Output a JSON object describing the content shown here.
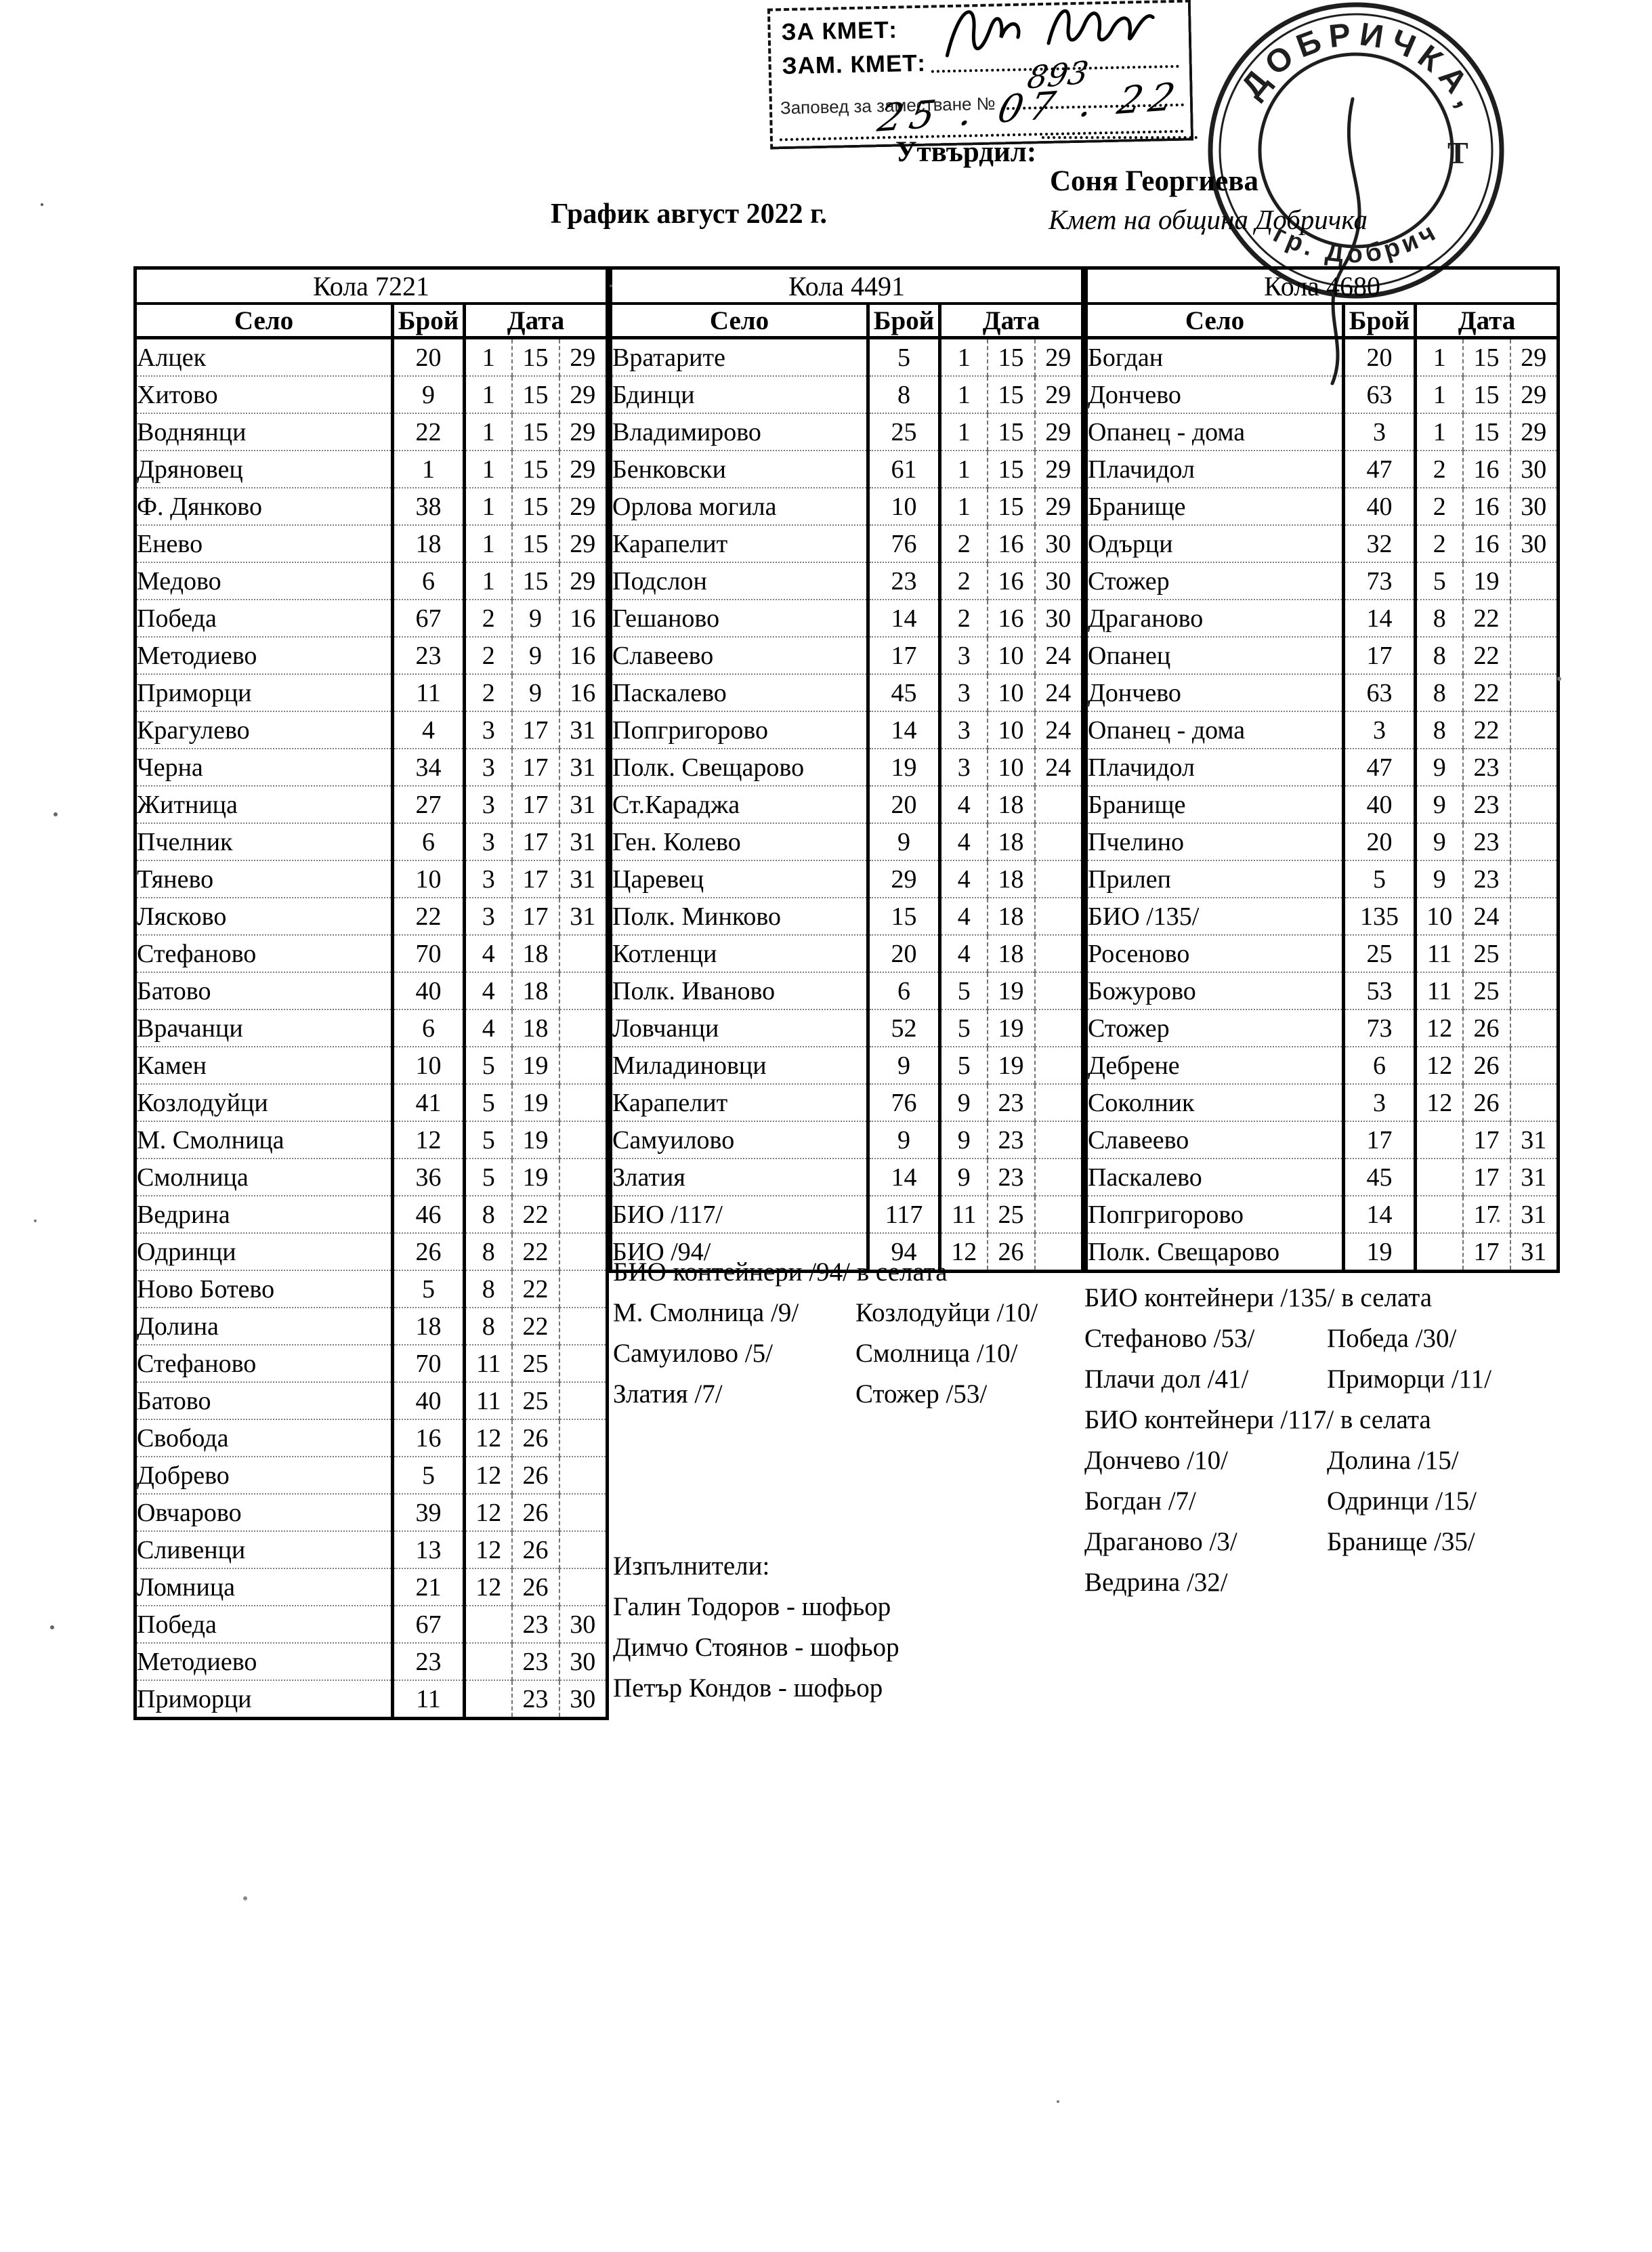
{
  "header": {
    "stamp_box": {
      "za_kmet": "ЗА КМЕТ:",
      "zam_kmet": "ЗАМ. КМЕТ:",
      "order_label": "Заповед за заместване №",
      "order_number": "893",
      "order_date": "25 . 07 . 22"
    },
    "approved_label": "Утвърдил:",
    "signer_name": "Соня Георгиева",
    "signer_title": "Кмет  на община Добричка",
    "round_stamp_top": "ДОБРИЧКА",
    "round_stamp_bottom": "гр. Добрич",
    "title": "График август 2022 г."
  },
  "table_headers": {
    "selo": "Село",
    "broy": "Брой",
    "data": "Дата"
  },
  "tables": [
    {
      "car": "Кола 7221",
      "rows": [
        [
          "Алцек",
          "20",
          "1",
          "15",
          "29"
        ],
        [
          "Хитово",
          "9",
          "1",
          "15",
          "29"
        ],
        [
          "Воднянци",
          "22",
          "1",
          "15",
          "29"
        ],
        [
          "Дряновец",
          "1",
          "1",
          "15",
          "29"
        ],
        [
          "Ф. Дянково",
          "38",
          "1",
          "15",
          "29"
        ],
        [
          "Енево",
          "18",
          "1",
          "15",
          "29"
        ],
        [
          "Медово",
          "6",
          "1",
          "15",
          "29"
        ],
        [
          "Победа",
          "67",
          "2",
          "9",
          "16"
        ],
        [
          "Методиево",
          "23",
          "2",
          "9",
          "16"
        ],
        [
          "Приморци",
          "11",
          "2",
          "9",
          "16"
        ],
        [
          "Крагулево",
          "4",
          "3",
          "17",
          "31"
        ],
        [
          "Черна",
          "34",
          "3",
          "17",
          "31"
        ],
        [
          "Житница",
          "27",
          "3",
          "17",
          "31"
        ],
        [
          "Пчелник",
          "6",
          "3",
          "17",
          "31"
        ],
        [
          "Тянево",
          "10",
          "3",
          "17",
          "31"
        ],
        [
          "Лясково",
          "22",
          "3",
          "17",
          "31"
        ],
        [
          "Стефаново",
          "70",
          "4",
          "18",
          ""
        ],
        [
          "Батово",
          "40",
          "4",
          "18",
          ""
        ],
        [
          "Врачанци",
          "6",
          "4",
          "18",
          ""
        ],
        [
          "Камен",
          "10",
          "5",
          "19",
          ""
        ],
        [
          "Козлодуйци",
          "41",
          "5",
          "19",
          ""
        ],
        [
          "М. Смолница",
          "12",
          "5",
          "19",
          ""
        ],
        [
          "Смолница",
          "36",
          "5",
          "19",
          ""
        ],
        [
          "Ведрина",
          "46",
          "8",
          "22",
          ""
        ],
        [
          "Одринци",
          "26",
          "8",
          "22",
          ""
        ],
        [
          "Ново Ботево",
          "5",
          "8",
          "22",
          ""
        ],
        [
          "Долина",
          "18",
          "8",
          "22",
          ""
        ],
        [
          "Стефаново",
          "70",
          "11",
          "25",
          ""
        ],
        [
          "Батово",
          "40",
          "11",
          "25",
          ""
        ],
        [
          "Свобода",
          "16",
          "12",
          "26",
          ""
        ],
        [
          "Добрево",
          "5",
          "12",
          "26",
          ""
        ],
        [
          "Овчарово",
          "39",
          "12",
          "26",
          ""
        ],
        [
          "Сливенци",
          "13",
          "12",
          "26",
          ""
        ],
        [
          "Ломница",
          "21",
          "12",
          "26",
          ""
        ],
        [
          "Победа",
          "67",
          "",
          "23",
          "30"
        ],
        [
          "Методиево",
          "23",
          "",
          "23",
          "30"
        ],
        [
          "Приморци",
          "11",
          "",
          "23",
          "30"
        ]
      ]
    },
    {
      "car": "Кола 4491",
      "rows": [
        [
          "Вратарите",
          "5",
          "1",
          "15",
          "29"
        ],
        [
          "Бдинци",
          "8",
          "1",
          "15",
          "29"
        ],
        [
          "Владимирово",
          "25",
          "1",
          "15",
          "29"
        ],
        [
          "Бенковски",
          "61",
          "1",
          "15",
          "29"
        ],
        [
          "Орлова могила",
          "10",
          "1",
          "15",
          "29"
        ],
        [
          "Карапелит",
          "76",
          "2",
          "16",
          "30"
        ],
        [
          "Подслон",
          "23",
          "2",
          "16",
          "30"
        ],
        [
          "Гешаново",
          "14",
          "2",
          "16",
          "30"
        ],
        [
          "Славеево",
          "17",
          "3",
          "10",
          "24"
        ],
        [
          "Паскалево",
          "45",
          "3",
          "10",
          "24"
        ],
        [
          "Попгригорово",
          "14",
          "3",
          "10",
          "24"
        ],
        [
          "Полк. Свещарово",
          "19",
          "3",
          "10",
          "24"
        ],
        [
          "Ст.Караджа",
          "20",
          "4",
          "18",
          ""
        ],
        [
          "Ген. Колево",
          "9",
          "4",
          "18",
          ""
        ],
        [
          "Царевец",
          "29",
          "4",
          "18",
          ""
        ],
        [
          "Полк. Минково",
          "15",
          "4",
          "18",
          ""
        ],
        [
          "Котленци",
          "20",
          "4",
          "18",
          ""
        ],
        [
          "Полк. Иваново",
          "6",
          "5",
          "19",
          ""
        ],
        [
          "Ловчанци",
          "52",
          "5",
          "19",
          ""
        ],
        [
          "Миладиновци",
          "9",
          "5",
          "19",
          ""
        ],
        [
          "Карапелит",
          "76",
          "9",
          "23",
          ""
        ],
        [
          "Самуилово",
          "9",
          "9",
          "23",
          ""
        ],
        [
          "Златия",
          "14",
          "9",
          "23",
          ""
        ],
        [
          "БИО /117/",
          "117",
          "11",
          "25",
          ""
        ],
        [
          "БИО /94/",
          "94",
          "12",
          "26",
          ""
        ]
      ]
    },
    {
      "car": "Кола 4680",
      "rows": [
        [
          "Богдан",
          "20",
          "1",
          "15",
          "29"
        ],
        [
          "Дончево",
          "63",
          "1",
          "15",
          "29"
        ],
        [
          "Опанец - дома",
          "3",
          "1",
          "15",
          "29"
        ],
        [
          "Плачидол",
          "47",
          "2",
          "16",
          "30"
        ],
        [
          "Бранище",
          "40",
          "2",
          "16",
          "30"
        ],
        [
          "Одърци",
          "32",
          "2",
          "16",
          "30"
        ],
        [
          "Стожер",
          "73",
          "5",
          "19",
          ""
        ],
        [
          "Драганово",
          "14",
          "8",
          "22",
          ""
        ],
        [
          "Опанец",
          "17",
          "8",
          "22",
          ""
        ],
        [
          "Дончево",
          "63",
          "8",
          "22",
          ""
        ],
        [
          "Опанец - дома",
          "3",
          "8",
          "22",
          ""
        ],
        [
          "Плачидол",
          "47",
          "9",
          "23",
          ""
        ],
        [
          "Бранище",
          "40",
          "9",
          "23",
          ""
        ],
        [
          "Пчелино",
          "20",
          "9",
          "23",
          ""
        ],
        [
          "Прилеп",
          "5",
          "9",
          "23",
          ""
        ],
        [
          "БИО /135/",
          "135",
          "10",
          "24",
          ""
        ],
        [
          "Росеново",
          "25",
          "11",
          "25",
          ""
        ],
        [
          "Божурово",
          "53",
          "11",
          "25",
          ""
        ],
        [
          "Стожер",
          "73",
          "12",
          "26",
          ""
        ],
        [
          "Дебрене",
          "6",
          "12",
          "26",
          ""
        ],
        [
          "Соколник",
          "3",
          "12",
          "26",
          ""
        ],
        [
          "Славеево",
          "17",
          "",
          "17",
          "31"
        ],
        [
          "Паскалево",
          "45",
          "",
          "17",
          "31"
        ],
        [
          "Попгригорово",
          "14",
          "",
          "17",
          "31"
        ],
        [
          "Полк. Свещарово",
          "19",
          "",
          "17",
          "31"
        ]
      ]
    }
  ],
  "notes_4491": {
    "bio_line": "БИО контейнери /94/ в селата",
    "pairs": [
      [
        "М. Смолница /9/",
        "Козлодуйци /10/"
      ],
      [
        "Самуилово /5/",
        "Смолница /10/"
      ],
      [
        "Златия /7/",
        "Стожер /53/"
      ]
    ]
  },
  "executors": {
    "heading": "Изпълнители:",
    "items": [
      "Галин Тодоров - шофьор",
      "Димчо Стоянов - шофьор",
      "Петър Кондов - шофьор"
    ]
  },
  "notes_4680": {
    "bio135_line": "БИО контейнери /135/ в селата",
    "pairs135": [
      [
        "Стефаново /53/",
        "Победа /30/"
      ],
      [
        "Плачи дол /41/",
        "Приморци /11/"
      ]
    ],
    "bio117_line": "БИО контейнери /117/ в селата",
    "pairs117": [
      [
        "Дончево /10/",
        "Долина /15/"
      ],
      [
        "Богдан /7/",
        "Одринци /15/"
      ],
      [
        "Драганово /3/",
        "Бранище /35/"
      ],
      [
        "Ведрина /32/",
        ""
      ]
    ]
  }
}
